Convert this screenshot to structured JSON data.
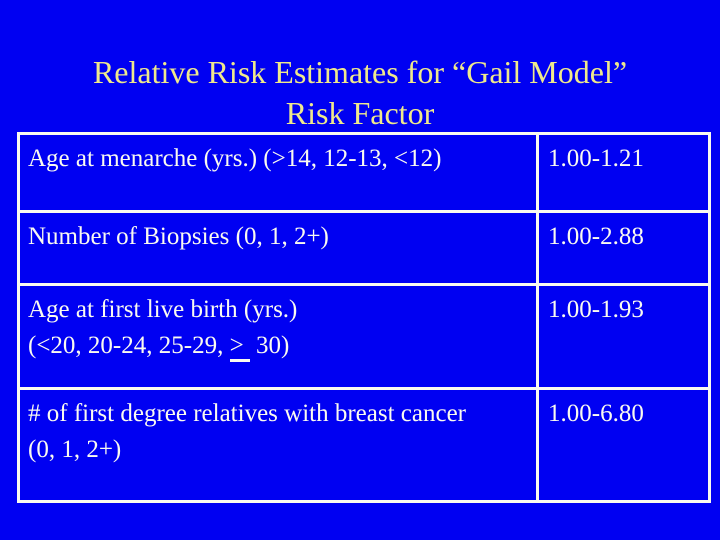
{
  "slide": {
    "title": {
      "line1": "Relative Risk Estimates for “Gail Model”",
      "line2": "Risk Factor"
    },
    "table": {
      "rows": [
        {
          "factor_line1": "Age at menarche (yrs.) (>14, 12-13, <12)",
          "relative_risk": "1.00-1.21"
        },
        {
          "factor_line1": "Number of Biopsies (0, 1, 2+)",
          "relative_risk": "1.00-2.88"
        },
        {
          "factor_line1": "Age at first live birth (yrs.)",
          "factor_line2_parts": {
            "pre": "(<20, 20-24, 25-29, ",
            "ge": ">",
            "post": " 30)"
          },
          "relative_risk": "1.00-1.93"
        },
        {
          "factor_line1": "# of first degree relatives with breast cancer",
          "factor_line2": "(0, 1, 2+)",
          "relative_risk": "1.00-6.80"
        }
      ]
    },
    "colors": {
      "background": "#0000F2",
      "title_text": "#EFE98C",
      "table_text": "#FAFAF0",
      "table_border": "#FAFAF0"
    }
  }
}
